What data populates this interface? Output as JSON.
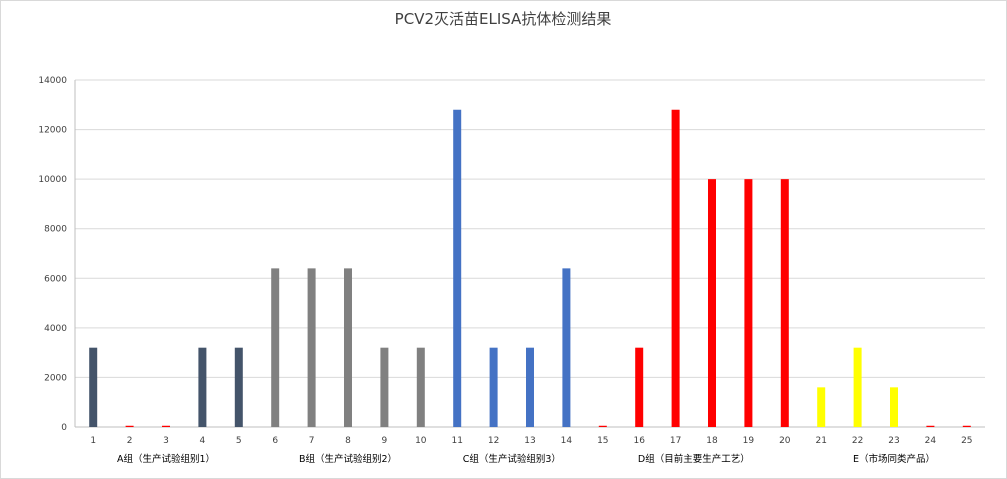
{
  "chart_data": {
    "type": "bar",
    "title": "PCV2灭活苗ELISA抗体检测结果",
    "xlabel": "",
    "ylabel": "",
    "ylim": [
      0,
      14000
    ],
    "yticks": [
      "0",
      "2000",
      "4000",
      "6000",
      "8000",
      "10000",
      "12000",
      "14000"
    ],
    "grid": true,
    "legend": "none",
    "categories": [
      "1",
      "2",
      "3",
      "4",
      "5",
      "6",
      "7",
      "8",
      "9",
      "10",
      "11",
      "12",
      "13",
      "14",
      "15",
      "16",
      "17",
      "18",
      "19",
      "20",
      "21",
      "22",
      "23",
      "24",
      "25"
    ],
    "values": [
      3200,
      50,
      50,
      3200,
      3200,
      6400,
      6400,
      6400,
      3200,
      3200,
      12800,
      3200,
      3200,
      6400,
      50,
      3200,
      12800,
      10000,
      10000,
      10000,
      1600,
      3200,
      1600,
      50,
      50
    ],
    "bar_colors": [
      "#44546a",
      "#ff0000",
      "#ff0000",
      "#44546a",
      "#44546a",
      "#808080",
      "#808080",
      "#808080",
      "#808080",
      "#808080",
      "#4472c4",
      "#4472c4",
      "#4472c4",
      "#4472c4",
      "#ff0000",
      "#ff0000",
      "#ff0000",
      "#ff0000",
      "#ff0000",
      "#ff0000",
      "#ffff00",
      "#ffff00",
      "#ffff00",
      "#ff0000",
      "#ff0000"
    ],
    "group_labels": [
      {
        "text": "A组（生产试验组别1）",
        "categories": [
          "1",
          "5"
        ]
      },
      {
        "text": "B组（生产试验组别2）",
        "categories": [
          "6",
          "10"
        ]
      },
      {
        "text": "C组（生产试验组别3）",
        "categories": [
          "11",
          "14"
        ]
      },
      {
        "text": "D组（目前主要生产工艺）",
        "categories": [
          "15",
          "20"
        ]
      },
      {
        "text": "E（市场同类产品）",
        "categories": [
          "21",
          "25"
        ]
      }
    ]
  },
  "colors": {
    "axis": "#bfbfbf",
    "grid": "#d9d9d9"
  }
}
